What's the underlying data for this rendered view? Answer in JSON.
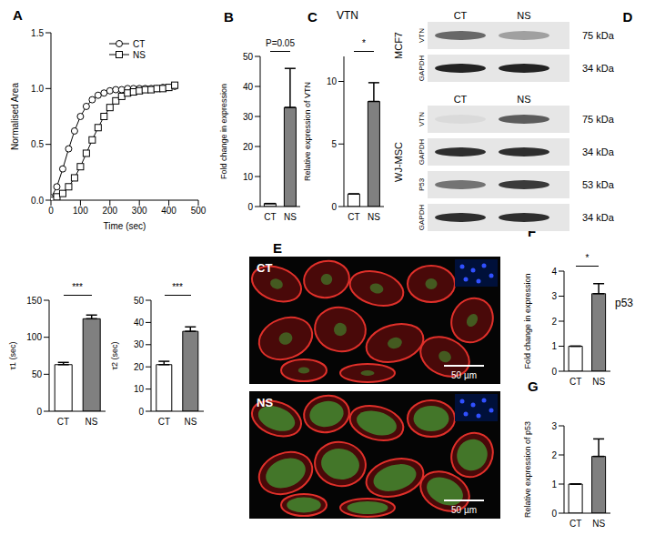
{
  "chart_data": [
    {
      "type": "line",
      "panel": "A",
      "x_label": "Time (sec)",
      "y_label": "Normalised Area",
      "x": [
        0,
        20,
        40,
        60,
        80,
        100,
        120,
        140,
        160,
        180,
        200,
        220,
        240,
        260,
        280,
        300,
        320,
        340,
        360,
        380,
        400,
        420
      ],
      "xlim": [
        0,
        500
      ],
      "xticks": [
        0,
        100,
        200,
        300,
        400,
        500
      ],
      "ylim": [
        0,
        1.5
      ],
      "yticks": [
        {
          "value": 0,
          "label": "0.0"
        },
        {
          "value": 0.5,
          "label": "0.5"
        },
        {
          "value": 1,
          "label": "1.0"
        },
        {
          "value": 1.5,
          "label": "1.5"
        }
      ],
      "legend": "upper center",
      "series": [
        {
          "name": "CT",
          "color": "#000000",
          "marker": "circle",
          "values": [
            0.02,
            0.12,
            0.28,
            0.46,
            0.62,
            0.75,
            0.84,
            0.9,
            0.94,
            0.96,
            0.98,
            0.99,
            0.99,
            1.0,
            1.0,
            1.0,
            1.0,
            1.0,
            1.0,
            1.01,
            1.01,
            1.02
          ]
        },
        {
          "name": "NS",
          "color": "#000000",
          "marker": "square",
          "values": [
            0.0,
            0.03,
            0.06,
            0.12,
            0.2,
            0.3,
            0.42,
            0.54,
            0.65,
            0.75,
            0.83,
            0.89,
            0.93,
            0.96,
            0.97,
            0.98,
            0.99,
            0.99,
            1.0,
            1.0,
            1.01,
            1.03
          ]
        }
      ]
    },
    {
      "type": "bar",
      "y_label": "τ1 (sec)",
      "categories": [
        "CT",
        "NS"
      ],
      "values": [
        63,
        125
      ],
      "errors": [
        3,
        5
      ],
      "colors": [
        "#ffffff",
        "#808080"
      ],
      "ylim": [
        0,
        150
      ],
      "yticks": [
        0,
        50,
        100,
        150
      ],
      "annotation": "***"
    },
    {
      "type": "bar",
      "y_label": "τ2 (sec)",
      "categories": [
        "CT",
        "NS"
      ],
      "values": [
        21,
        36
      ],
      "errors": [
        1.5,
        2
      ],
      "colors": [
        "#ffffff",
        "#808080"
      ],
      "ylim": [
        0,
        50
      ],
      "yticks": [
        0,
        10,
        20,
        30,
        40,
        50
      ],
      "annotation": "***"
    },
    {
      "type": "bar",
      "panel": "B",
      "y_label": "Fold change in expression",
      "categories": [
        "CT",
        "NS"
      ],
      "values": [
        1,
        33
      ],
      "errors": [
        0,
        13
      ],
      "colors": [
        "#ffffff",
        "#808080"
      ],
      "ylim": [
        0,
        50
      ],
      "yticks": [
        0,
        10,
        20,
        30,
        40,
        50
      ],
      "annotation": "P=0.05"
    },
    {
      "type": "bar",
      "panel": "C",
      "y_label": "Relative expression of VTN",
      "categories": [
        "CT",
        "NS"
      ],
      "values": [
        1,
        8.4
      ],
      "errors": [
        0,
        1.5
      ],
      "colors": [
        "#ffffff",
        "#808080"
      ],
      "ylim": [
        0,
        12
      ],
      "yticks": [
        0,
        5,
        10
      ],
      "annotation": "*"
    },
    {
      "type": "bar",
      "panel": "F",
      "y_label": "Fold change in expression",
      "categories": [
        "CT",
        "NS"
      ],
      "values": [
        1,
        3.1
      ],
      "errors": [
        0,
        0.4
      ],
      "colors": [
        "#ffffff",
        "#808080"
      ],
      "ylim": [
        0,
        4
      ],
      "yticks": [
        0,
        1,
        2,
        3,
        4
      ],
      "annotation": "*"
    },
    {
      "type": "bar",
      "panel": "G",
      "y_label": "Relative expression of p53",
      "categories": [
        "CT",
        "NS"
      ],
      "values": [
        1,
        1.95
      ],
      "errors": [
        0,
        0.6
      ],
      "colors": [
        "#ffffff",
        "#808080"
      ],
      "ylim": [
        0,
        3
      ],
      "yticks": [
        0,
        1,
        2,
        3
      ]
    }
  ],
  "group_titles": [
    "VTN",
    "p53"
  ],
  "blot": {
    "panel": "D",
    "groups": [
      {
        "cell_line": "MCF7",
        "columns": [
          "CT",
          "NS"
        ],
        "rows": [
          {
            "protein": "VTN",
            "size": "75 kDa",
            "band_intensity": [
              0.55,
              0.3
            ]
          },
          {
            "protein": "GAPDH",
            "size": "34 kDa",
            "band_intensity": [
              0.85,
              0.85
            ]
          }
        ]
      },
      {
        "cell_line": "WJ-MSC",
        "columns": [
          "CT",
          "NS"
        ],
        "rows": [
          {
            "protein": "VTN",
            "size": "75 kDa",
            "band_intensity": [
              0.05,
              0.6
            ]
          },
          {
            "protein": "GAPDH",
            "size": "34 kDa",
            "band_intensity": [
              0.8,
              0.8
            ]
          },
          {
            "protein": "P53",
            "size": "53 kDa",
            "band_intensity": [
              0.5,
              0.75
            ]
          },
          {
            "protein": "GAPDH",
            "size": "34 kDa",
            "band_intensity": [
              0.8,
              0.8
            ]
          }
        ]
      }
    ]
  },
  "images": {
    "panel": "E",
    "items": [
      {
        "label": "CT",
        "scale_bar": "50 µm"
      },
      {
        "label": "NS",
        "scale_bar": "50 µm"
      }
    ]
  }
}
